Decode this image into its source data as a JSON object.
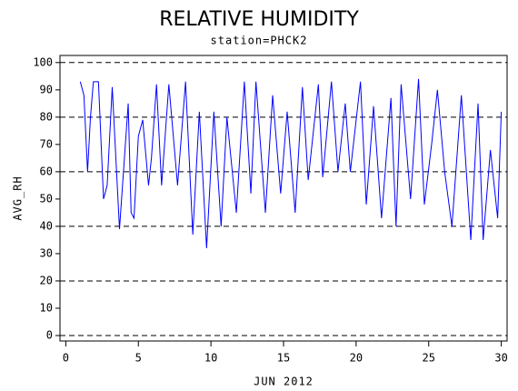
{
  "chart_data": {
    "type": "line",
    "title": "RELATIVE HUMIDITY",
    "subtitle": "station=PHCK2",
    "y_label": "AVG_RH",
    "x_label": "JUN 2012",
    "x": [
      1,
      1.25,
      1.5,
      1.7,
      1.9,
      2.25,
      2.6,
      2.85,
      3.2,
      3.7,
      4.3,
      4.5,
      4.7,
      5,
      5.3,
      5.7,
      5.9,
      6.25,
      6.6,
      7.1,
      7.7,
      8.25,
      8.75,
      9.2,
      9.7,
      10.2,
      10.7,
      11.1,
      11.75,
      12.3,
      12.75,
      13.1,
      13.75,
      14.25,
      14.8,
      15.25,
      15.8,
      16.3,
      16.7,
      17.4,
      17.7,
      18.3,
      18.75,
      19.25,
      19.6,
      20.3,
      20.7,
      21.2,
      21.75,
      22.4,
      22.75,
      23.1,
      23.75,
      24.3,
      24.7,
      25.2,
      25.6,
      26.1,
      26.6,
      27.25,
      27.9,
      28.4,
      28.75,
      29.25,
      29.75,
      30
    ],
    "series": [
      {
        "color": "#0000ff",
        "values": [
          93,
          88,
          60,
          80,
          93,
          93,
          50,
          55,
          91,
          39,
          85,
          45,
          43,
          73,
          79,
          55,
          65,
          92,
          55,
          92,
          55,
          93,
          37,
          82,
          32,
          82,
          40,
          80,
          45,
          93,
          52,
          93,
          45,
          88,
          52,
          82,
          45,
          91,
          57,
          92,
          58,
          93,
          60,
          85,
          60,
          93,
          48,
          84,
          43,
          87,
          40,
          92,
          50,
          94,
          48,
          70,
          90,
          60,
          40,
          88,
          35,
          85,
          35,
          68,
          43,
          82
        ]
      }
    ],
    "xlim": [
      -0.4,
      30.4
    ],
    "ylim": [
      -2,
      102.6
    ],
    "xticks": [
      0,
      5,
      10,
      15,
      20,
      25,
      30
    ],
    "yticks": [
      0,
      10,
      20,
      30,
      40,
      50,
      60,
      70,
      80,
      90,
      100
    ],
    "grid_lines": [
      0,
      20,
      40,
      60,
      80,
      100
    ]
  }
}
